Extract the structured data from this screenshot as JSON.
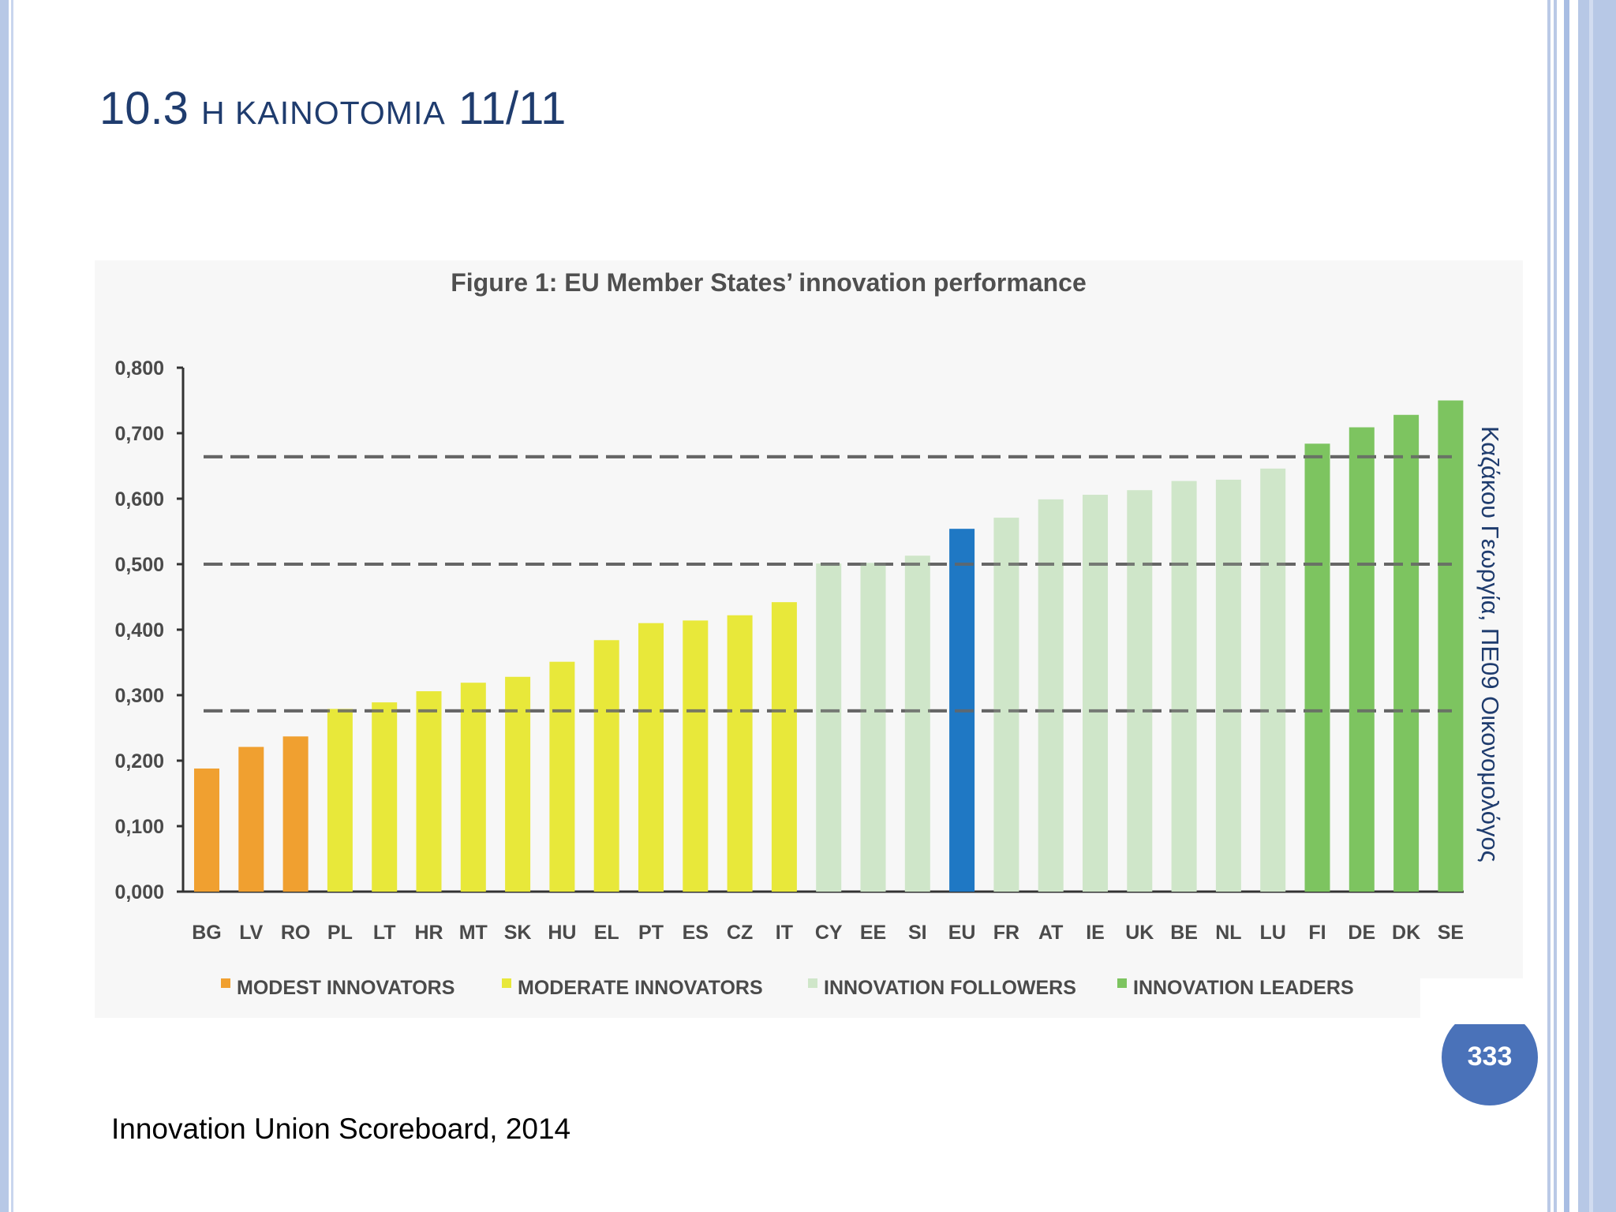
{
  "slide": {
    "title_number": "10.3",
    "title_word": "Η ΚΑΙΝΟΤΟΜΙΑ",
    "title_suffix": "11/11",
    "side_text": "Καζάκου Γεωργία, ΠΕ09 Οικονομολόγος",
    "source": "Innovation Union Scoreboard, 2014",
    "page_number": "333"
  },
  "colors": {
    "modest": "#f0a030",
    "moderate": "#e8e83a",
    "followers": "#cfe6c9",
    "leaders": "#7dc460",
    "eu": "#1f78c4",
    "title": "#1f3c6e"
  },
  "chart_data": {
    "type": "bar",
    "title": "Figure 1: EU Member States’ innovation performance",
    "categories": [
      "BG",
      "LV",
      "RO",
      "PL",
      "LT",
      "HR",
      "MT",
      "SK",
      "HU",
      "EL",
      "PT",
      "ES",
      "CZ",
      "IT",
      "CY",
      "EE",
      "SI",
      "EU",
      "FR",
      "AT",
      "IE",
      "UK",
      "BE",
      "NL",
      "LU",
      "FI",
      "DE",
      "DK",
      "SE"
    ],
    "values": [
      0.188,
      0.221,
      0.237,
      0.279,
      0.289,
      0.306,
      0.319,
      0.328,
      0.351,
      0.384,
      0.41,
      0.414,
      0.422,
      0.442,
      0.501,
      0.502,
      0.513,
      0.554,
      0.571,
      0.599,
      0.606,
      0.613,
      0.627,
      0.629,
      0.646,
      0.684,
      0.709,
      0.728,
      0.75
    ],
    "groups": [
      "modest",
      "modest",
      "modest",
      "moderate",
      "moderate",
      "moderate",
      "moderate",
      "moderate",
      "moderate",
      "moderate",
      "moderate",
      "moderate",
      "moderate",
      "moderate",
      "followers",
      "followers",
      "followers",
      "eu",
      "followers",
      "followers",
      "followers",
      "followers",
      "followers",
      "followers",
      "followers",
      "leaders",
      "leaders",
      "leaders",
      "leaders"
    ],
    "thresholds": [
      0.276,
      0.5,
      0.664
    ],
    "ylim": [
      0,
      0.8
    ],
    "yticks": [
      "0,000",
      "0,100",
      "0,200",
      "0,300",
      "0,400",
      "0,500",
      "0,600",
      "0,700",
      "0,800"
    ],
    "xlabel": "",
    "ylabel": "",
    "legend": [
      {
        "key": "modest",
        "label": "MODEST INNOVATORS"
      },
      {
        "key": "moderate",
        "label": "MODERATE INNOVATORS"
      },
      {
        "key": "followers",
        "label": "INNOVATION FOLLOWERS"
      },
      {
        "key": "leaders",
        "label": "INNOVATION LEADERS"
      }
    ]
  }
}
